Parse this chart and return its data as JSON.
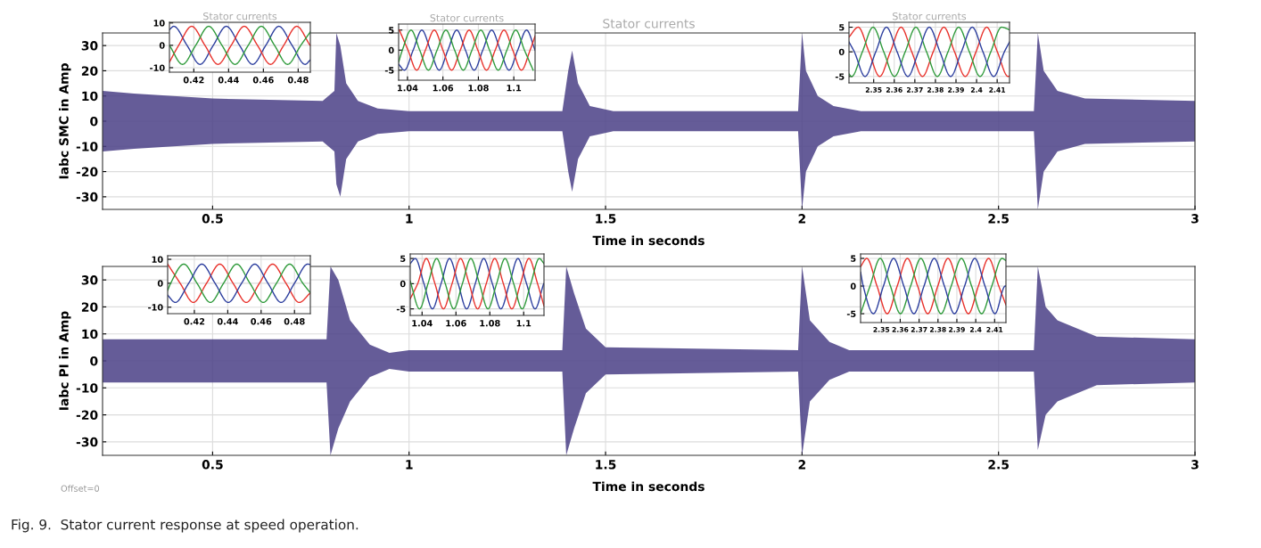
{
  "chart_data": [
    {
      "type": "line",
      "title": "Stator currents",
      "xlabel": "Time in seconds",
      "ylabel": "Iabc SMC in Amp",
      "xlim": [
        0.22,
        3
      ],
      "ylim": [
        -35,
        35
      ],
      "xticks": [
        0.5,
        1,
        1.5,
        2,
        2.5,
        3
      ],
      "yticks": [
        -30,
        -20,
        -10,
        0,
        10,
        20,
        30
      ],
      "grid": true,
      "series": [
        {
          "color": "#4a3f86",
          "x": [
            0.22,
            0.3,
            0.5,
            0.78,
            0.81,
            0.815,
            0.825,
            0.84,
            0.87,
            0.92,
            1.0,
            1.39,
            1.405,
            1.415,
            1.43,
            1.46,
            1.52,
            1.99,
            2.0,
            2.01,
            2.04,
            2.08,
            2.15,
            2.59,
            2.6,
            2.615,
            2.65,
            2.72,
            3.0
          ],
          "values": [
            null,
            null,
            null,
            null,
            null,
            null,
            null,
            null,
            null,
            null,
            null,
            null,
            null,
            null,
            null,
            null,
            null,
            null,
            null,
            null,
            null,
            null,
            null,
            null,
            null,
            null,
            null,
            null,
            null
          ],
          "lower": [
            -12,
            -11,
            -9,
            -8,
            -12,
            -25,
            -30,
            -15,
            -8,
            -5,
            -4,
            -4,
            -20,
            -28,
            -15,
            -6,
            -4,
            -4,
            -35,
            -20,
            -10,
            -6,
            -4,
            -4,
            -35,
            -20,
            -12,
            -9,
            -8
          ],
          "upper": [
            12,
            11,
            9,
            8,
            12,
            35,
            30,
            15,
            8,
            5,
            4,
            4,
            20,
            28,
            15,
            6,
            4,
            4,
            35,
            20,
            10,
            6,
            4,
            4,
            35,
            20,
            12,
            9,
            8
          ]
        }
      ]
    },
    {
      "type": "line",
      "title": "Stator currents",
      "xlim": [
        0.406,
        0.487
      ],
      "ylim": [
        -12,
        10.3
      ],
      "xticks": [
        0.42,
        0.44,
        0.46,
        0.48
      ],
      "yticks": [
        -10,
        0,
        10
      ],
      "grid": true,
      "series": [
        {
          "color": "#2c3e9e",
          "x": [
            0.406,
            0.4085,
            0.4161,
            0.4236,
            0.4312,
            0.4387,
            0.4463,
            0.4538,
            0.4614,
            0.4689,
            0.4765,
            0.484,
            0.487
          ],
          "values": [
            7,
            8.5,
            0,
            -8.5,
            0,
            8.5,
            0,
            -8.5,
            0,
            8.5,
            0,
            -8.5,
            -6.5
          ]
        },
        {
          "color": "#e8312b",
          "x": [
            0.406,
            0.4113,
            0.4188,
            0.4264,
            0.4339,
            0.4415,
            0.449,
            0.4566,
            0.4641,
            0.4717,
            0.4792,
            0.4868
          ],
          "values": [
            -7.5,
            0,
            8.5,
            0,
            -8.5,
            0,
            8.5,
            0,
            -8.5,
            0,
            8.5,
            0
          ]
        },
        {
          "color": "#2e9a3a",
          "x": [
            0.406,
            0.4135,
            0.4211,
            0.4286,
            0.4362,
            0.4437,
            0.4513,
            0.4588,
            0.4664,
            0.4739,
            0.4815,
            0.487
          ],
          "values": [
            0,
            -8.5,
            0,
            8.5,
            0,
            -8.5,
            0,
            8.5,
            0,
            -8.5,
            0,
            6
          ]
        }
      ]
    },
    {
      "type": "line",
      "title": "Stator currents",
      "xlim": [
        1.035,
        1.112
      ],
      "ylim": [
        -7.5,
        6.5
      ],
      "xticks": [
        1.04,
        1.06,
        1.08,
        1.1
      ],
      "yticks": [
        -5,
        0,
        5
      ],
      "grid": true,
      "series": [
        {
          "color": "#2c3e9e",
          "x": [
            1.035,
            1.0383,
            1.0432,
            1.0481,
            1.053,
            1.0579,
            1.0628,
            1.0678,
            1.0727,
            1.0776,
            1.0825,
            1.0875,
            1.0924,
            1.0973,
            1.1022,
            1.1072,
            1.112
          ],
          "values": [
            -3.5,
            -5,
            0,
            5,
            0,
            -5,
            0,
            5,
            0,
            -5,
            0,
            5,
            0,
            -5,
            0,
            5,
            0
          ]
        },
        {
          "color": "#e8312b",
          "x": [
            1.0354,
            1.0403,
            1.0452,
            1.0501,
            1.0551,
            1.06,
            1.0649,
            1.0698,
            1.0748,
            1.0797,
            1.0846,
            1.0895,
            1.0945,
            1.0994,
            1.1043,
            1.1092,
            1.112
          ],
          "values": [
            5,
            0,
            -5,
            0,
            5,
            0,
            -5,
            0,
            5,
            0,
            -5,
            0,
            5,
            0,
            -5,
            0,
            3.5
          ]
        },
        {
          "color": "#2e9a3a",
          "x": [
            1.035,
            1.0371,
            1.042,
            1.0469,
            1.0518,
            1.0567,
            1.0617,
            1.0666,
            1.0715,
            1.0764,
            1.0814,
            1.0863,
            1.0912,
            1.0961,
            1.1011,
            1.106,
            1.1109
          ],
          "values": [
            -3,
            0,
            5,
            0,
            -5,
            0,
            5,
            0,
            -5,
            0,
            5,
            0,
            -5,
            0,
            5,
            0,
            -5
          ]
        }
      ]
    },
    {
      "type": "line",
      "title": "Stator currents",
      "xlim": [
        2.338,
        2.416
      ],
      "ylim": [
        -6.3,
        6
      ],
      "xticks": [
        2.35,
        2.36,
        2.37,
        2.38,
        2.39,
        2.4,
        2.41
      ],
      "yticks": [
        -5,
        0,
        5
      ],
      "grid": true,
      "series": [
        {
          "color": "#e8312b",
          "x": [
            2.338,
            2.3425,
            2.3477,
            2.3529,
            2.3581,
            2.3633,
            2.3685,
            2.3737,
            2.3789,
            2.3841,
            2.3893,
            2.3945,
            2.3997,
            2.4049,
            2.4101,
            2.4153,
            2.416
          ],
          "values": [
            3,
            5,
            0,
            -5,
            0,
            5,
            0,
            -5,
            0,
            5,
            0,
            -5,
            0,
            5,
            0,
            -5,
            -4.9
          ]
        },
        {
          "color": "#2e9a3a",
          "x": [
            2.338,
            2.3393,
            2.3445,
            2.3497,
            2.3549,
            2.3601,
            2.3653,
            2.3705,
            2.3757,
            2.3809,
            2.3861,
            2.3913,
            2.3965,
            2.4017,
            2.4069,
            2.4121,
            2.416
          ],
          "values": [
            -4.5,
            -5,
            0,
            5,
            0,
            -5,
            0,
            5,
            0,
            -5,
            0,
            5,
            0,
            -5,
            0,
            5,
            4.5
          ]
        },
        {
          "color": "#2c3e9e",
          "x": [
            2.338,
            2.3406,
            2.3458,
            2.351,
            2.3562,
            2.3614,
            2.3666,
            2.3718,
            2.377,
            2.3822,
            2.3874,
            2.3926,
            2.3979,
            2.4031,
            2.4083,
            2.4135,
            2.416
          ],
          "values": [
            2,
            0,
            -5,
            0,
            5,
            0,
            -5,
            0,
            5,
            0,
            -5,
            0,
            5,
            0,
            -5,
            0,
            2
          ]
        }
      ]
    },
    {
      "type": "line",
      "xlabel": "Time in seconds",
      "ylabel": "Iabc PI in Amp",
      "xlim": [
        0.22,
        3
      ],
      "ylim": [
        -35,
        35
      ],
      "xticks": [
        0.5,
        1,
        1.5,
        2,
        2.5,
        3
      ],
      "yticks": [
        -30,
        -20,
        -10,
        0,
        10,
        20,
        30
      ],
      "grid": true,
      "annotations": [
        "Offset=0",
        "Fig. 9.  Stator current response at speed operation."
      ],
      "series": [
        {
          "color": "#4a3f86",
          "x": [
            0.22,
            0.79,
            0.8,
            0.82,
            0.85,
            0.9,
            0.95,
            1.0,
            1.39,
            1.4,
            1.42,
            1.45,
            1.5,
            1.99,
            2.0,
            2.02,
            2.07,
            2.12,
            2.59,
            2.6,
            2.62,
            2.65,
            2.75,
            3.0
          ],
          "values": [
            null,
            null,
            null,
            null,
            null,
            null,
            null,
            null,
            null,
            null,
            null,
            null,
            null,
            null,
            null,
            null,
            null,
            null,
            null,
            null,
            null,
            null,
            null,
            null
          ],
          "lower": [
            -8,
            -8,
            -35,
            -25,
            -15,
            -6,
            -3,
            -4,
            -4,
            -35,
            -25,
            -12,
            -5,
            -4,
            -35,
            -15,
            -7,
            -4,
            -4,
            -33,
            -20,
            -15,
            -9,
            -8
          ],
          "upper": [
            8,
            8,
            35,
            30,
            15,
            6,
            3,
            4,
            4,
            35,
            25,
            12,
            5,
            4,
            35,
            15,
            7,
            4,
            4,
            35,
            20,
            15,
            9,
            8
          ]
        }
      ]
    },
    {
      "type": "line",
      "xlim": [
        0.404,
        0.4895
      ],
      "ylim": [
        -12.7,
        11.5
      ],
      "xticks": [
        0.42,
        0.44,
        0.46,
        0.48
      ],
      "yticks": [
        -10,
        0,
        10
      ],
      "grid": true,
      "series": [
        {
          "color": "#e8312b",
          "x": [
            0.404,
            0.4115,
            0.4194,
            0.4273,
            0.4352,
            0.4432,
            0.4511,
            0.459,
            0.4669,
            0.4749,
            0.4828,
            0.4895
          ],
          "values": [
            8,
            0,
            -8,
            0,
            8,
            0,
            -8,
            0,
            8,
            0,
            -8,
            -4
          ]
        },
        {
          "color": "#2e9a3a",
          "x": [
            0.404,
            0.4058,
            0.4137,
            0.4216,
            0.4296,
            0.4375,
            0.4454,
            0.4533,
            0.4613,
            0.4692,
            0.4771,
            0.485,
            0.4895
          ],
          "values": [
            -3,
            0,
            8,
            0,
            -8,
            0,
            8,
            0,
            -8,
            0,
            8,
            0,
            -4
          ]
        },
        {
          "color": "#2c3e9e",
          "x": [
            0.404,
            0.4086,
            0.4166,
            0.4245,
            0.4324,
            0.4403,
            0.4483,
            0.4562,
            0.4641,
            0.472,
            0.48,
            0.4879,
            0.4895
          ],
          "values": [
            -5,
            -8,
            0,
            8,
            0,
            -8,
            0,
            8,
            0,
            -8,
            0,
            8,
            7.8
          ]
        }
      ]
    },
    {
      "type": "line",
      "xlim": [
        1.033,
        1.112
      ],
      "ylim": [
        -6.3,
        5.9
      ],
      "xticks": [
        1.04,
        1.06,
        1.08,
        1.1
      ],
      "yticks": [
        -5,
        0,
        5
      ],
      "grid": true,
      "series": [
        {
          "color": "#2c3e9e",
          "x": [
            1.033,
            1.036,
            1.0411,
            1.0461,
            1.0512,
            1.0562,
            1.0613,
            1.0663,
            1.0714,
            1.0764,
            1.0815,
            1.0865,
            1.0916,
            1.0966,
            1.1017,
            1.1067,
            1.1118
          ],
          "values": [
            4,
            5,
            0,
            -5,
            0,
            5,
            0,
            -5,
            0,
            5,
            0,
            -5,
            0,
            5,
            0,
            -5,
            0
          ]
        },
        {
          "color": "#e8312b",
          "x": [
            1.033,
            1.0374,
            1.0425,
            1.0476,
            1.0526,
            1.0577,
            1.0627,
            1.0678,
            1.0728,
            1.0779,
            1.0829,
            1.088,
            1.093,
            1.0981,
            1.1031,
            1.1082,
            1.112
          ],
          "values": [
            -3,
            0,
            5,
            0,
            -5,
            0,
            5,
            0,
            -5,
            0,
            5,
            0,
            -5,
            0,
            5,
            0,
            -4.4
          ]
        },
        {
          "color": "#2e9a3a",
          "x": [
            1.033,
            1.0385,
            1.0435,
            1.0486,
            1.0537,
            1.0587,
            1.0638,
            1.0688,
            1.0739,
            1.0789,
            1.084,
            1.089,
            1.0941,
            1.0991,
            1.1042,
            1.1092,
            1.112
          ],
          "values": [
            0.5,
            -5,
            0,
            5,
            0,
            -5,
            0,
            5,
            0,
            -5,
            0,
            5,
            0,
            -5,
            0,
            5,
            4
          ]
        }
      ]
    },
    {
      "type": "line",
      "xlim": [
        2.339,
        2.416
      ],
      "ylim": [
        -6.6,
        5.8
      ],
      "xticks": [
        2.35,
        2.36,
        2.37,
        2.38,
        2.39,
        2.4,
        2.41
      ],
      "yticks": [
        -5,
        0,
        5
      ],
      "grid": true,
      "series": [
        {
          "color": "#e8312b",
          "x": [
            2.339,
            2.3423,
            2.3477,
            2.3531,
            2.3584,
            2.3638,
            2.3692,
            2.3746,
            2.3799,
            2.3853,
            2.3907,
            2.3961,
            2.4014,
            2.4068,
            2.4122,
            2.416
          ],
          "values": [
            3.5,
            5,
            0,
            -5,
            0,
            5,
            0,
            -5,
            0,
            5,
            0,
            -5,
            0,
            5,
            0,
            -3.4
          ]
        },
        {
          "color": "#2e9a3a",
          "x": [
            2.339,
            2.344,
            2.3494,
            2.3548,
            2.3601,
            2.3655,
            2.3709,
            2.3763,
            2.3816,
            2.387,
            2.3924,
            2.3978,
            2.4031,
            2.4085,
            2.4139,
            2.416
          ],
          "values": [
            -5,
            0,
            5,
            0,
            -5,
            0,
            5,
            0,
            -5,
            0,
            5,
            0,
            -5,
            0,
            5,
            4.6
          ]
        },
        {
          "color": "#2c3e9e",
          "x": [
            2.339,
            2.3404,
            2.3458,
            2.3511,
            2.3565,
            2.3619,
            2.3672,
            2.3726,
            2.378,
            2.3834,
            2.3887,
            2.3941,
            2.3995,
            2.4049,
            2.4102,
            2.4156,
            2.416
          ],
          "values": [
            2.5,
            0,
            -5,
            0,
            5,
            0,
            -5,
            0,
            5,
            0,
            -5,
            0,
            5,
            0,
            -5,
            0,
            0
          ]
        }
      ]
    }
  ]
}
